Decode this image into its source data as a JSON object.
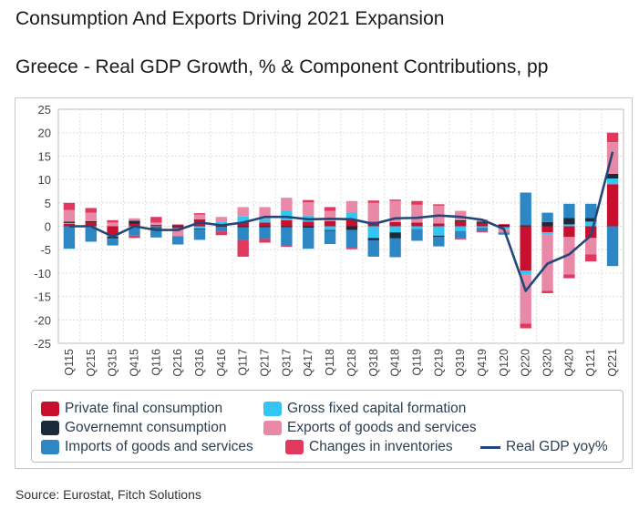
{
  "header": {
    "title": "Consumption And Exports Driving 2021 Expansion",
    "subtitle": "Greece - Real GDP Growth, % & Component Contributions, pp"
  },
  "footer": {
    "source": "Source: Eurostat, Fitch Solutions"
  },
  "colors": {
    "private": "#c8102e",
    "gov": "#1d2a3a",
    "imports": "#2c87c4",
    "gfcf": "#33c6f2",
    "exports": "#e88aa7",
    "inventories": "#e0385f",
    "line": "#24477a"
  },
  "legend": [
    {
      "key": "private",
      "label": "Private final consumption"
    },
    {
      "key": "gfcf",
      "label": "Gross fixed capital formation"
    },
    {
      "key": "gov",
      "label": "Governemnt consumption"
    },
    {
      "key": "exports",
      "label": "Exports of goods and services"
    },
    {
      "key": "imports",
      "label": "Imports of goods and services"
    },
    {
      "key": "inventories",
      "label": "Changes in inventories"
    },
    {
      "key": "line",
      "label": "Real GDP yoy%"
    }
  ],
  "chart_data": {
    "type": "bar",
    "stacked": true,
    "title": "Greece - Real GDP Growth, % & Component Contributions, pp",
    "ylim": [
      -25,
      25
    ],
    "yticks": [
      25,
      20,
      15,
      10,
      5,
      0,
      -5,
      -10,
      -15,
      -20,
      -25
    ],
    "grid": true,
    "legend_position": "bottom",
    "categories": [
      "Q115",
      "Q215",
      "Q315",
      "Q415",
      "Q116",
      "Q216",
      "Q316",
      "Q416",
      "Q117",
      "Q217",
      "Q317",
      "Q417",
      "Q118",
      "Q218",
      "Q318",
      "Q418",
      "Q119",
      "Q219",
      "Q319",
      "Q419",
      "Q120",
      "Q220",
      "Q320",
      "Q420",
      "Q121",
      "Q221"
    ],
    "series": [
      {
        "name": "Private final consumption",
        "key": "private",
        "type": "bar",
        "values": [
          0.5,
          0.8,
          -2.0,
          0.5,
          0.3,
          -0.4,
          1.5,
          0.2,
          0.9,
          0.8,
          1.3,
          1.0,
          1.1,
          1.5,
          1.0,
          0.9,
          0.8,
          0.6,
          1.0,
          0.7,
          -0.2,
          -9.5,
          -1.3,
          -2.3,
          -2.5,
          9.0
        ]
      },
      {
        "name": "Gross fixed capital formation",
        "key": "gfcf",
        "type": "bar",
        "values": [
          0.2,
          -0.3,
          -0.2,
          -0.2,
          -0.2,
          -0.2,
          -0.5,
          0.8,
          1.2,
          0.8,
          2.0,
          1.3,
          -0.8,
          1.5,
          -2.5,
          -1.3,
          -0.6,
          -2.0,
          -1.0,
          -0.3,
          -0.3,
          -0.8,
          -0.5,
          0.4,
          1.0,
          1.2
        ]
      },
      {
        "name": "Governemnt consumption",
        "key": "gov",
        "type": "bar",
        "values": [
          0.3,
          0.3,
          -0.4,
          0.7,
          -0.2,
          0.2,
          -0.2,
          -0.1,
          -0.2,
          -0.2,
          -0.2,
          -0.3,
          -0.2,
          -0.8,
          -0.5,
          -1.3,
          0.0,
          -0.3,
          0.3,
          0.3,
          0.3,
          0.2,
          0.9,
          1.4,
          0.8,
          1.0
        ]
      },
      {
        "name": "Exports of goods and services",
        "key": "exports",
        "type": "bar",
        "values": [
          2.5,
          1.8,
          0.8,
          0.5,
          0.5,
          -1.5,
          1.0,
          1.0,
          2.0,
          2.5,
          2.8,
          2.8,
          2.2,
          2.4,
          4.0,
          4.5,
          3.8,
          3.8,
          2.0,
          0.5,
          -0.8,
          -10.5,
          -12.0,
          -8.0,
          -3.5,
          6.8
        ]
      },
      {
        "name": "Imports of goods and services",
        "key": "imports",
        "type": "bar",
        "values": [
          -4.8,
          -3.0,
          -1.5,
          -1.8,
          -2.0,
          -1.8,
          -2.2,
          -1.0,
          -2.8,
          -2.5,
          -4.0,
          -4.5,
          -2.8,
          -3.8,
          -3.5,
          -4.0,
          -2.5,
          -2.0,
          -1.5,
          -0.8,
          -0.5,
          7.0,
          2.0,
          3.0,
          3.0,
          -8.5
        ]
      },
      {
        "name": "Changes in inventories",
        "key": "inventories",
        "type": "bar",
        "values": [
          1.5,
          1.0,
          0.5,
          -0.5,
          1.2,
          0.2,
          0.3,
          -0.8,
          -3.5,
          -0.8,
          -0.2,
          0.5,
          0.8,
          -0.3,
          0.5,
          0.3,
          0.8,
          0.3,
          -0.3,
          -0.2,
          0.2,
          -1.0,
          -0.5,
          -0.8,
          -1.5,
          2.0
        ]
      },
      {
        "name": "Real GDP yoy%",
        "key": "line",
        "type": "line",
        "values": [
          0.0,
          0.0,
          -2.2,
          0.0,
          -0.8,
          -0.8,
          0.8,
          0.2,
          0.8,
          2.0,
          2.0,
          1.5,
          1.6,
          1.5,
          0.5,
          1.7,
          1.8,
          2.3,
          2.0,
          1.4,
          -0.6,
          -13.8,
          -8.0,
          -6.0,
          -2.0,
          15.9
        ]
      }
    ]
  }
}
